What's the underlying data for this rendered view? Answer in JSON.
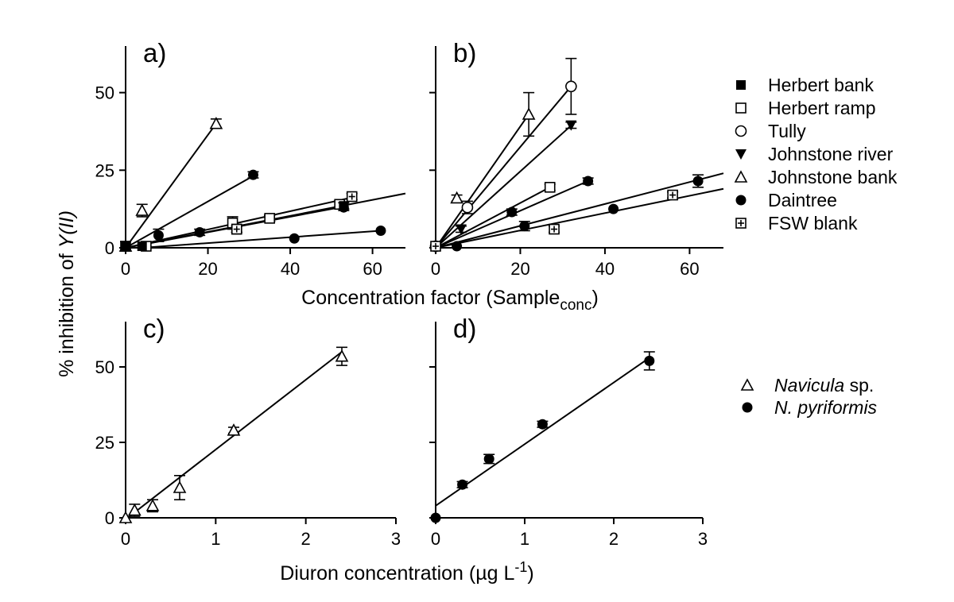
{
  "figure": {
    "ylabel_prefix": "% inhibition of ",
    "ylabel_italic": "Y(II)",
    "xlabel_top_main": "Concentration factor (Sample",
    "xlabel_top_sub": "conc",
    "xlabel_top_close": ")",
    "xlabel_bottom_main": "Diuron concentration (",
    "xlabel_bottom_mu": "µg",
    "xlabel_bottom_unit": " L",
    "xlabel_bottom_sup": "-1",
    "xlabel_bottom_close": ")"
  },
  "legend_top": [
    {
      "label": "Herbert bank",
      "marker": "square-filled"
    },
    {
      "label": "Herbert ramp",
      "marker": "square-open"
    },
    {
      "label": "Tully",
      "marker": "circle-open"
    },
    {
      "label": "Johnstone river",
      "marker": "triangle-down-filled"
    },
    {
      "label": "Johnstone bank",
      "marker": "triangle-open"
    },
    {
      "label": "Daintree",
      "marker": "circle-filled"
    },
    {
      "label": "FSW blank",
      "marker": "square-cross"
    }
  ],
  "legend_bottom": [
    {
      "label_italic": "Navicula",
      "label_rest": " sp.",
      "marker": "triangle-open"
    },
    {
      "label_italic": "N. pyriformis",
      "label_rest": "",
      "marker": "circle-filled"
    }
  ],
  "chart_data": [
    {
      "panel": "a)",
      "type": "scatter",
      "xlim": [
        0,
        68
      ],
      "ylim": [
        0,
        65
      ],
      "xticks": [
        0,
        20,
        40,
        60
      ],
      "yticks": [
        0,
        25,
        50
      ],
      "ytick_labels_shown": true,
      "series": [
        {
          "name": "Johnstone bank",
          "marker": "triangle-open",
          "x": [
            0,
            4,
            22
          ],
          "y": [
            0.5,
            12,
            40
          ],
          "err": [
            1.5,
            2,
            1.5
          ],
          "fit": [
            [
              0,
              0
            ],
            [
              22,
              40
            ]
          ]
        },
        {
          "name": "Daintree",
          "marker": "circle-filled",
          "x": [
            8,
            18,
            35,
            53,
            31
          ],
          "y": [
            4,
            5,
            9.5,
            13,
            23.5
          ],
          "err": [
            2,
            1,
            1,
            1,
            1
          ],
          "fit": [
            [
              0,
              0
            ],
            [
              31.5,
              23.5
            ]
          ]
        },
        {
          "name": "Herbert ramp",
          "marker": "square-open",
          "x": [
            0,
            5,
            26,
            27,
            35,
            52
          ],
          "y": [
            0.5,
            0.5,
            8,
            6,
            9.5,
            14
          ],
          "err": [
            1.5,
            0.5,
            2,
            1,
            1,
            1
          ],
          "fit": [
            [
              0,
              0
            ],
            [
              68,
              17.5
            ]
          ]
        },
        {
          "name": "FSW blank",
          "marker": "square-cross",
          "x": [
            27,
            55
          ],
          "y": [
            6,
            16.5
          ],
          "err": [
            1,
            1
          ],
          "fit": [
            [
              0,
              0
            ],
            [
              56,
              16.5
            ]
          ]
        },
        {
          "name": "Herbert bank",
          "marker": "square-filled",
          "x": [
            0,
            4,
            53
          ],
          "y": [
            0.5,
            0.5,
            13.5
          ],
          "err": [
            0.5,
            0.5,
            1
          ],
          "fit": [
            [
              0,
              0
            ],
            [
              54,
              13.5
            ]
          ]
        },
        {
          "name": "Daintree",
          "marker": "circle-filled",
          "x": [
            41,
            62
          ],
          "y": [
            3,
            5.5
          ],
          "err": [
            0.5,
            0.5
          ],
          "fit": [
            [
              4,
              0
            ],
            [
              62,
              5.5
            ]
          ]
        }
      ]
    },
    {
      "panel": "b)",
      "type": "scatter",
      "xlim": [
        0,
        68
      ],
      "ylim": [
        0,
        65
      ],
      "xticks": [
        0,
        20,
        40,
        60
      ],
      "yticks": [
        0,
        25,
        50
      ],
      "ytick_labels_shown": false,
      "series": [
        {
          "name": "Tully",
          "marker": "circle-open",
          "x": [
            0,
            7.5,
            32
          ],
          "y": [
            0.5,
            13,
            52
          ],
          "err": [
            0.5,
            2,
            9
          ],
          "fit": [
            [
              0,
              0
            ],
            [
              32,
              52
            ]
          ]
        },
        {
          "name": "Johnstone bank",
          "marker": "triangle-open",
          "x": [
            5,
            22
          ],
          "y": [
            16,
            43
          ],
          "err": [
            1,
            7
          ],
          "fit": [
            [
              0,
              0
            ],
            [
              22,
              43
            ]
          ]
        },
        {
          "name": "Johnstone river",
          "marker": "triangle-down-filled",
          "x": [
            6,
            32
          ],
          "y": [
            6,
            39.5
          ],
          "err": [
            1,
            1
          ],
          "fit": [
            [
              0,
              0
            ],
            [
              32.5,
              40
            ]
          ]
        },
        {
          "name": "Herbert ramp",
          "marker": "square-open",
          "x": [
            27
          ],
          "y": [
            19.5
          ],
          "err": [
            1
          ],
          "fit": [
            [
              0,
              0
            ],
            [
              27,
              19.5
            ]
          ]
        },
        {
          "name": "Daintree",
          "marker": "circle-filled",
          "x": [
            0,
            18,
            36,
            21,
            42,
            62
          ],
          "y": [
            0.5,
            11.5,
            21.5,
            7,
            12.5,
            21.5
          ],
          "err": [
            0.5,
            1,
            1,
            1.5,
            0.5,
            2
          ],
          "fit": [
            [
              0,
              0
            ],
            [
              36,
              21.5
            ]
          ]
        },
        {
          "name": "Daintree",
          "marker": "circle-filled",
          "x": [
            5
          ],
          "y": [
            0.5
          ],
          "err": [
            0.5
          ],
          "fit": [
            [
              0,
              0
            ],
            [
              68,
              24
            ]
          ]
        },
        {
          "name": "FSW blank",
          "marker": "square-cross",
          "x": [
            0,
            28,
            56
          ],
          "y": [
            0.5,
            6,
            17
          ],
          "err": [
            0.5,
            1,
            1
          ],
          "fit": [
            [
              0,
              0
            ],
            [
              68,
              19
            ]
          ]
        }
      ]
    },
    {
      "panel": "c)",
      "type": "scatter",
      "xlim": [
        0,
        3
      ],
      "ylim": [
        0,
        65
      ],
      "xticks": [
        0,
        1,
        2,
        3
      ],
      "yticks": [
        0,
        25,
        50
      ],
      "ytick_labels_shown": true,
      "series": [
        {
          "name": "Navicula sp.",
          "marker": "triangle-open",
          "x": [
            0,
            0.1,
            0.3,
            0.6,
            1.2,
            2.4
          ],
          "y": [
            0,
            2.5,
            4,
            10,
            29,
            53.5
          ],
          "err": [
            0.5,
            2,
            2,
            4,
            1,
            3
          ],
          "fit": [
            [
              0,
              -0.5
            ],
            [
              2.4,
              55
            ]
          ]
        }
      ]
    },
    {
      "panel": "d)",
      "type": "scatter",
      "xlim": [
        0,
        3
      ],
      "ylim": [
        0,
        65
      ],
      "xticks": [
        0,
        1,
        2,
        3
      ],
      "yticks": [
        0,
        25,
        50
      ],
      "ytick_labels_shown": false,
      "series": [
        {
          "name": "N. pyriformis",
          "marker": "circle-filled",
          "x": [
            0,
            0.3,
            0.6,
            1.2,
            2.4
          ],
          "y": [
            0,
            11,
            19.5,
            31,
            52
          ],
          "err": [
            0.5,
            1,
            1.5,
            1,
            3
          ],
          "fit": [
            [
              0,
              4
            ],
            [
              2.4,
              53
            ]
          ]
        }
      ]
    }
  ]
}
